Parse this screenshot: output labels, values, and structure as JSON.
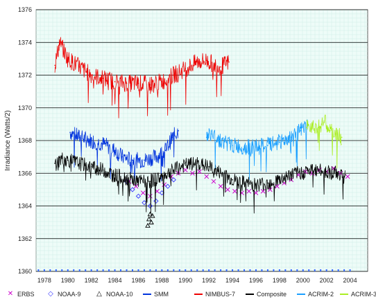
{
  "chart_data": {
    "type": "scatter",
    "title": "",
    "xlabel": "",
    "ylabel": "Irradiance (Watts/2)",
    "xlim": [
      1977.3,
      2005.5
    ],
    "ylim": [
      1360,
      1376
    ],
    "yticks": [
      1360,
      1362,
      1364,
      1366,
      1368,
      1370,
      1372,
      1374,
      1376
    ],
    "xticks": [
      1978,
      1980,
      1982,
      1984,
      1986,
      1988,
      1990,
      1992,
      1994,
      1996,
      1998,
      2000,
      2002,
      2004
    ],
    "grid": true,
    "legend_position": "bottom",
    "series": [
      {
        "name": "ERBS",
        "style": "x-marker",
        "color": "#cc00cc",
        "x": [
          1985.2,
          1985.8,
          1986.4,
          1987.0,
          1987.6,
          1988.2,
          1988.8,
          1989.4,
          1990.0,
          1990.6,
          1991.2,
          1991.8,
          1992.4,
          1993.0,
          1993.6,
          1994.2,
          1994.8,
          1995.4,
          1996.0,
          1996.6,
          1997.2,
          1997.8,
          1998.4,
          1999.0,
          1999.6,
          2000.2,
          2000.8,
          2001.4,
          2002.0,
          2002.6,
          2003.2,
          2003.8
        ],
        "y": [
          1365.5,
          1365.2,
          1364.8,
          1364.6,
          1364.9,
          1365.3,
          1365.8,
          1366.0,
          1366.2,
          1366.0,
          1366.1,
          1365.8,
          1365.5,
          1365.2,
          1365.0,
          1364.9,
          1364.8,
          1364.9,
          1364.8,
          1364.9,
          1365.0,
          1365.2,
          1365.4,
          1365.6,
          1365.9,
          1366.1,
          1366.0,
          1366.2,
          1366.1,
          1366.3,
          1366.0,
          1365.8
        ]
      },
      {
        "name": "NOAA-9",
        "style": "diamond-marker",
        "color": "#3333ff",
        "x": [
          1985.0,
          1985.5,
          1986.0,
          1986.5,
          1987.0,
          1987.5,
          1988.0,
          1988.5,
          1989.0
        ],
        "y": [
          1365.5,
          1365.0,
          1364.6,
          1364.2,
          1364.0,
          1364.3,
          1364.8,
          1365.2,
          1365.6
        ]
      },
      {
        "name": "NOAA-10",
        "style": "triangle-marker",
        "color": "#000000",
        "x": [
          1986.8,
          1986.9,
          1987.0,
          1987.1,
          1987.2
        ],
        "y": [
          1362.8,
          1363.2,
          1363.5,
          1363.0,
          1363.4
        ]
      },
      {
        "name": "SMM",
        "style": "line",
        "color": "#0033dd",
        "x": [
          1980.2,
          1981.0,
          1982.0,
          1983.0,
          1984.0,
          1984.6,
          1985.5,
          1986.5,
          1987.5,
          1988.3,
          1988.9,
          1989.4
        ],
        "y": [
          1368.5,
          1368.2,
          1368.0,
          1367.8,
          1367.4,
          1367.0,
          1366.8,
          1366.8,
          1367.0,
          1367.4,
          1368.2,
          1368.6
        ]
      },
      {
        "name": "NIMBUS-7",
        "style": "line",
        "color": "#ee0000",
        "x": [
          1978.9,
          1979.3,
          1980.0,
          1981.0,
          1982.0,
          1983.0,
          1984.0,
          1985.0,
          1986.0,
          1987.0,
          1988.0,
          1989.0,
          1990.0,
          1991.0,
          1991.8,
          1992.5,
          1993.0,
          1993.7
        ],
        "y": [
          1372.6,
          1374.0,
          1373.0,
          1372.5,
          1372.0,
          1371.8,
          1371.6,
          1371.5,
          1371.5,
          1371.4,
          1371.6,
          1372.0,
          1372.4,
          1372.8,
          1372.9,
          1372.6,
          1372.5,
          1372.8
        ]
      },
      {
        "name": "Composite",
        "style": "line",
        "color": "#000000",
        "x": [
          1978.9,
          1979.5,
          1980.0,
          1981.0,
          1982.0,
          1983.0,
          1984.0,
          1985.0,
          1986.0,
          1987.0,
          1988.0,
          1989.0,
          1990.0,
          1991.0,
          1992.0,
          1993.0,
          1994.0,
          1995.0,
          1996.0,
          1997.0,
          1998.0,
          1999.0,
          2000.0,
          2001.0,
          2002.0,
          2003.0,
          2003.6
        ],
        "y": [
          1366.6,
          1366.9,
          1366.8,
          1366.6,
          1366.4,
          1366.2,
          1365.9,
          1365.7,
          1365.5,
          1365.5,
          1365.8,
          1366.2,
          1366.5,
          1366.6,
          1366.4,
          1366.0,
          1365.6,
          1365.4,
          1365.3,
          1365.4,
          1365.6,
          1365.9,
          1366.1,
          1366.2,
          1366.1,
          1366.0,
          1365.9
        ]
      },
      {
        "name": "ACRIM-2",
        "style": "line",
        "color": "#1a9fff",
        "x": [
          1991.8,
          1992.2,
          1993.0,
          1994.0,
          1995.0,
          1996.0,
          1997.0,
          1998.0,
          1999.0,
          1999.8,
          2000.4
        ],
        "y": [
          1368.2,
          1368.4,
          1368.0,
          1367.7,
          1367.6,
          1367.6,
          1367.7,
          1367.9,
          1368.2,
          1368.6,
          1368.9
        ]
      },
      {
        "name": "ACRIM-3",
        "style": "line",
        "color": "#aaee22",
        "x": [
          2000.3,
          2000.8,
          2001.3,
          2001.8,
          2002.3,
          2002.8,
          2003.3
        ],
        "y": [
          1368.8,
          1369.0,
          1368.8,
          1369.2,
          1368.6,
          1368.4,
          1368.2
        ]
      }
    ]
  }
}
